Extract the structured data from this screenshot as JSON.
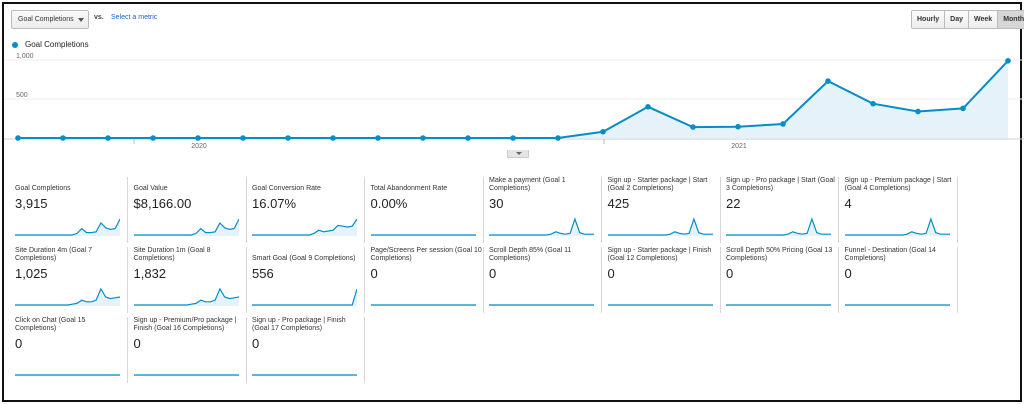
{
  "toolbar": {
    "metric_select": "Goal Completions",
    "vs_label": "vs.",
    "select_metric_link": "Select a metric",
    "granularity": [
      {
        "label": "Hourly",
        "active": false
      },
      {
        "label": "Day",
        "active": false
      },
      {
        "label": "Week",
        "active": false
      },
      {
        "label": "Month",
        "active": true
      }
    ]
  },
  "colors": {
    "series": "#058dc7",
    "fill": "#e6f2f9"
  },
  "chart_data": {
    "type": "area",
    "legend": [
      "Goal Completions"
    ],
    "y_ticks": [
      "1,000",
      "500"
    ],
    "x_labels": [
      "2020",
      "2021"
    ],
    "ylim": [
      0,
      1000
    ],
    "grid": true,
    "series": [
      {
        "name": "Goal Completions",
        "values": [
          0,
          0,
          0,
          0,
          0,
          0,
          0,
          0,
          0,
          0,
          0,
          0,
          0,
          80,
          400,
          140,
          145,
          180,
          730,
          440,
          340,
          380,
          990
        ]
      }
    ]
  },
  "tiles": [
    {
      "label": "Goal Completions",
      "value": "3,915",
      "spark": "rise"
    },
    {
      "label": "Goal Value",
      "value": "$8,166.00",
      "spark": "rise"
    },
    {
      "label": "Goal Conversion Rate",
      "value": "16.07%",
      "spark": "rise2"
    },
    {
      "label": "Total Abandonment Rate",
      "value": "0.00%",
      "spark": "flat"
    },
    {
      "label": "Make a payment (Goal 1 Completions)",
      "value": "30",
      "spark": "peak"
    },
    {
      "label": "Sign up - Starter package | Start (Goal 2 Completions)",
      "value": "425",
      "spark": "peak"
    },
    {
      "label": "Sign up - Pro package | Start (Goal 3 Completions)",
      "value": "22",
      "spark": "peak"
    },
    {
      "label": "Sign up - Premium package | Start (Goal 4 Completions)",
      "value": "4",
      "spark": "peak"
    },
    {
      "label": "Site Duration 4m (Goal 7 Completions)",
      "value": "1,025",
      "spark": "bump"
    },
    {
      "label": "Site Duration 1m (Goal 8 Completions)",
      "value": "1,832",
      "spark": "bump"
    },
    {
      "label": "Smart Goal (Goal 9 Completions)",
      "value": "556",
      "spark": "spike_end"
    },
    {
      "label": "Page/Screens Per session (Goal 10 Completions)",
      "value": "0",
      "spark": "flat"
    },
    {
      "label": "Scroll Depth 85% (Goal 11 Completions)",
      "value": "0",
      "spark": "flat"
    },
    {
      "label": "Sign up - Starter package | Finish (Goal 12 Completions)",
      "value": "0",
      "spark": "flat"
    },
    {
      "label": "Scroll Depth 50% Pricing (Goal 13 Completions)",
      "value": "0",
      "spark": "flat"
    },
    {
      "label": "Funnel - Destination (Goal 14 Completions)",
      "value": "0",
      "spark": "flat"
    },
    {
      "label": "Click on Chat (Goal 15 Completions)",
      "value": "0",
      "spark": "flat"
    },
    {
      "label": "Sign up - Premium/Pro package | Finish (Goal 16 Completions)",
      "value": "0",
      "spark": "flat"
    },
    {
      "label": "Sign up - Pro package | Finish (Goal 17 Completions)",
      "value": "0",
      "spark": "flat"
    }
  ]
}
